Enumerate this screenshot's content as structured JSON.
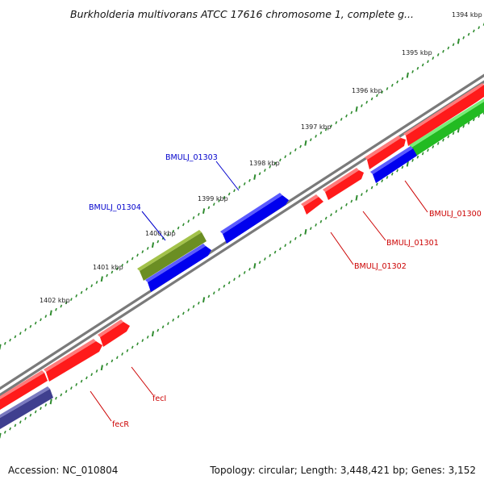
{
  "title": "Burkholderia multivorans ATCC 17616 chromosome 1, complete g...",
  "footer": {
    "accession": "Accession: NC_010804",
    "summary": "Topology: circular; Length: 3,448,421 bp; Genes: 3,152"
  },
  "ruler_labels": [
    "1394 kbp",
    "1395 kbp",
    "1396 kbp",
    "1397 kbp",
    "1398 kbp",
    "1399 kbp",
    "1400 kbp",
    "1401 kbp",
    "1402 kbp"
  ],
  "gene_labels": [
    {
      "text": "BMULJ_01303",
      "color": "#0000cc"
    },
    {
      "text": "BMULJ_01304",
      "color": "#0000cc"
    },
    {
      "text": "BMULJ_01300",
      "color": "#cc0000"
    },
    {
      "text": "BMULJ_01301",
      "color": "#cc0000"
    },
    {
      "text": "BMULJ_01302",
      "color": "#cc0000"
    },
    {
      "text": "fecI",
      "color": "#cc0000"
    },
    {
      "text": "fecR",
      "color": "#cc0000"
    }
  ],
  "colors": {
    "backbone": "#808080",
    "ruler_ticks": "#2e8b2e",
    "gene_red": "#ff0000",
    "gene_blue": "#0000ff",
    "gene_green": "#33cc33",
    "gene_olive": "#6b8e23",
    "gene_purple": "#3f3f8f"
  }
}
